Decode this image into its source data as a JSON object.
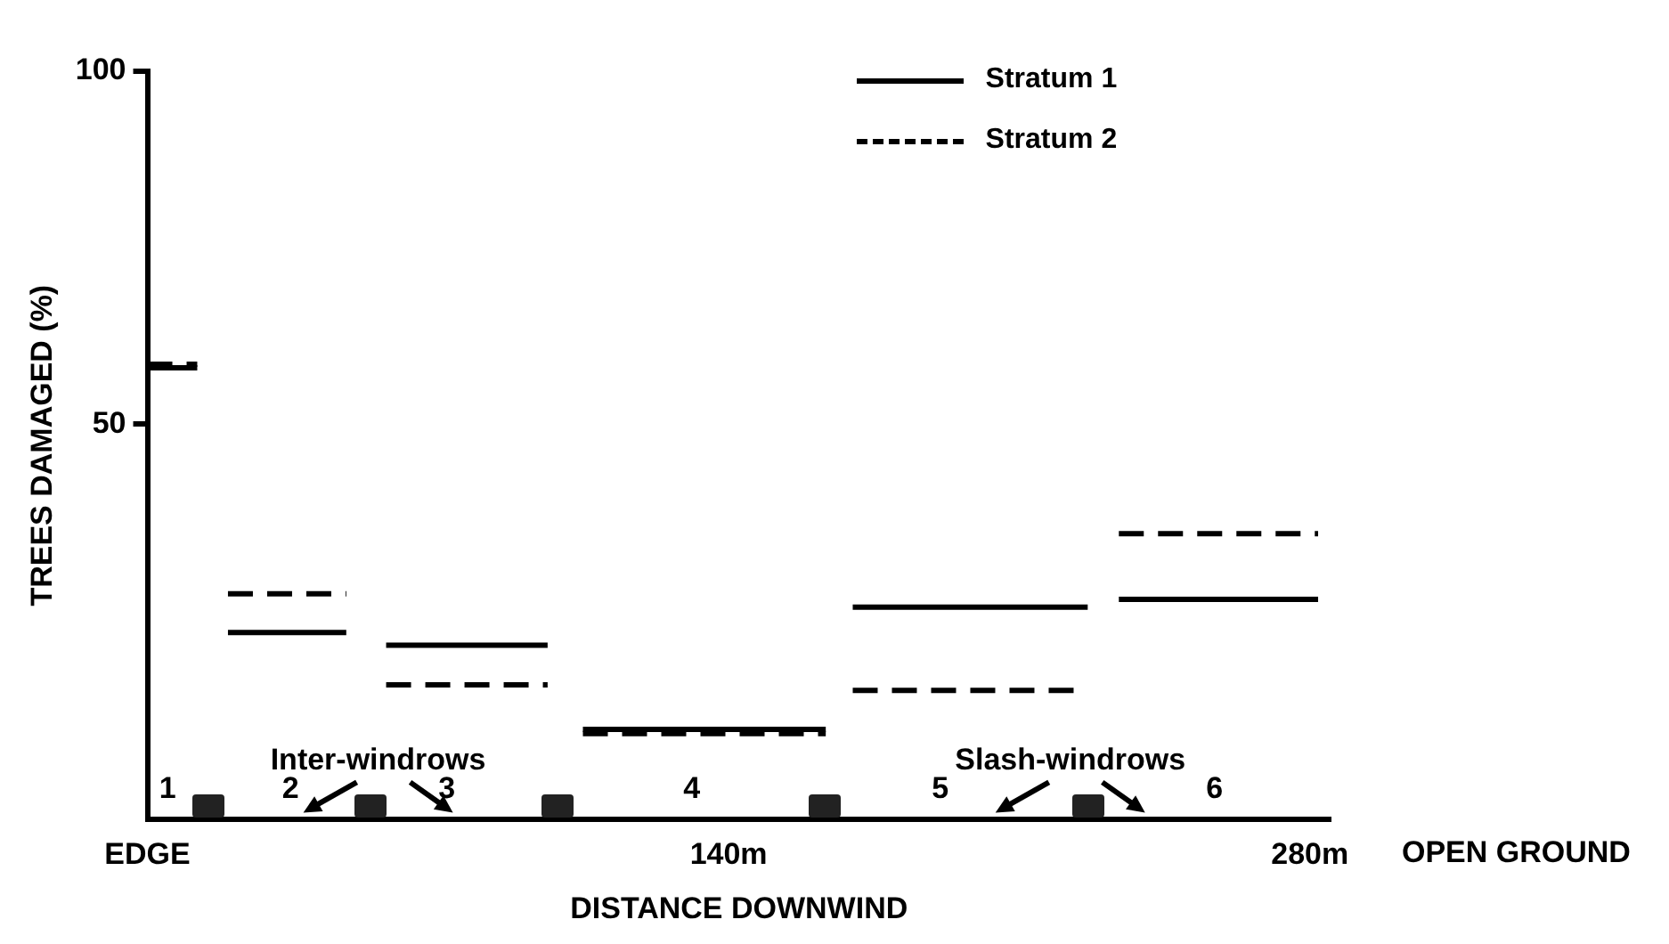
{
  "chart_data": {
    "type": "line",
    "xlabel": "DISTANCE DOWNWIND",
    "ylabel": "TREES DAMAGED (%)",
    "xlim": [
      0,
      285
    ],
    "xticks": [
      {
        "value": 0,
        "label": "EDGE"
      },
      {
        "value": 140,
        "label": "140m"
      },
      {
        "value": 280,
        "label": "280m"
      }
    ],
    "ylim": [
      -6,
      100
    ],
    "yticks": [
      50,
      100
    ],
    "grid": false,
    "legend": "top right",
    "marker": "none",
    "series": [
      {
        "name": "Stratum 1",
        "color": "#000000",
        "line_style": "solid",
        "x": [
          0,
          12,
          null,
          19.4,
          47.9,
          null,
          57.5,
          96.4,
          null,
          104.9,
          163.4,
          null,
          169.9,
          226.5,
          null,
          234,
          282
        ],
        "values": [
          58,
          58,
          null,
          20.5,
          20.5,
          null,
          18.7,
          18.7,
          null,
          6.8,
          6.8,
          null,
          24.1,
          24.1,
          null,
          25.2,
          25.2
        ]
      },
      {
        "name": "Stratum 2",
        "color": "#000000",
        "line_style": "dashed",
        "x": [
          0,
          12,
          null,
          19.4,
          47.9,
          null,
          57.5,
          96.4,
          null,
          104.9,
          163.4,
          null,
          169.9,
          226.5,
          null,
          234,
          282
        ],
        "values": [
          58.5,
          58.5,
          null,
          26,
          26,
          null,
          13.1,
          13.1,
          null,
          6.2,
          6.2,
          null,
          12.3,
          12.3,
          null,
          34.5,
          34.5
        ]
      }
    ],
    "annotations": [
      "1",
      "2",
      "3",
      "4",
      "5",
      "6",
      "Inter-windrows",
      "Slash-windrows",
      "OPEN GROUND"
    ]
  }
}
